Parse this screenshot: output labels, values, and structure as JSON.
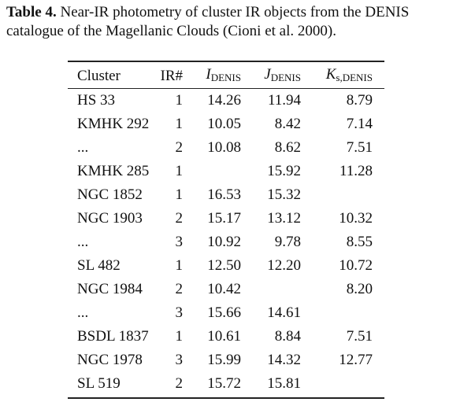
{
  "caption": {
    "label": "Table 4.",
    "text": "Near-IR photometry of cluster IR objects from the DENIS catalogue of the Magellanic Clouds (Cioni et al. 2000)."
  },
  "table": {
    "header": [
      "Cluster",
      "IR#",
      {
        "symbol": "I",
        "sub": "DENIS"
      },
      {
        "symbol": "J",
        "sub": "DENIS"
      },
      {
        "symbol": "K",
        "sub": "s,DENIS"
      }
    ],
    "rows": [
      [
        "HS 33",
        "1",
        "14.26",
        "11.94",
        "8.79"
      ],
      [
        "KMHK 292",
        "1",
        "10.05",
        "8.42",
        "7.14"
      ],
      [
        "...",
        "2",
        "10.08",
        "8.62",
        "7.51"
      ],
      [
        "KMHK 285",
        "1",
        null,
        "15.92",
        "11.28"
      ],
      [
        "NGC 1852",
        "1",
        "16.53",
        "15.32",
        null
      ],
      [
        "NGC 1903",
        "2",
        "15.17",
        "13.12",
        "10.32"
      ],
      [
        "...",
        "3",
        "10.92",
        "9.78",
        "8.55"
      ],
      [
        "SL 482",
        "1",
        "12.50",
        "12.20",
        "10.72"
      ],
      [
        "NGC 1984",
        "2",
        "10.42",
        null,
        "8.20"
      ],
      [
        "...",
        "3",
        "15.66",
        "14.61",
        null
      ],
      [
        "BSDL 1837",
        "1",
        "10.61",
        "8.84",
        "7.51"
      ],
      [
        "NGC 1978",
        "3",
        "15.99",
        "14.32",
        "12.77"
      ],
      [
        "SL 519",
        "2",
        "15.72",
        "15.81",
        null
      ]
    ]
  }
}
